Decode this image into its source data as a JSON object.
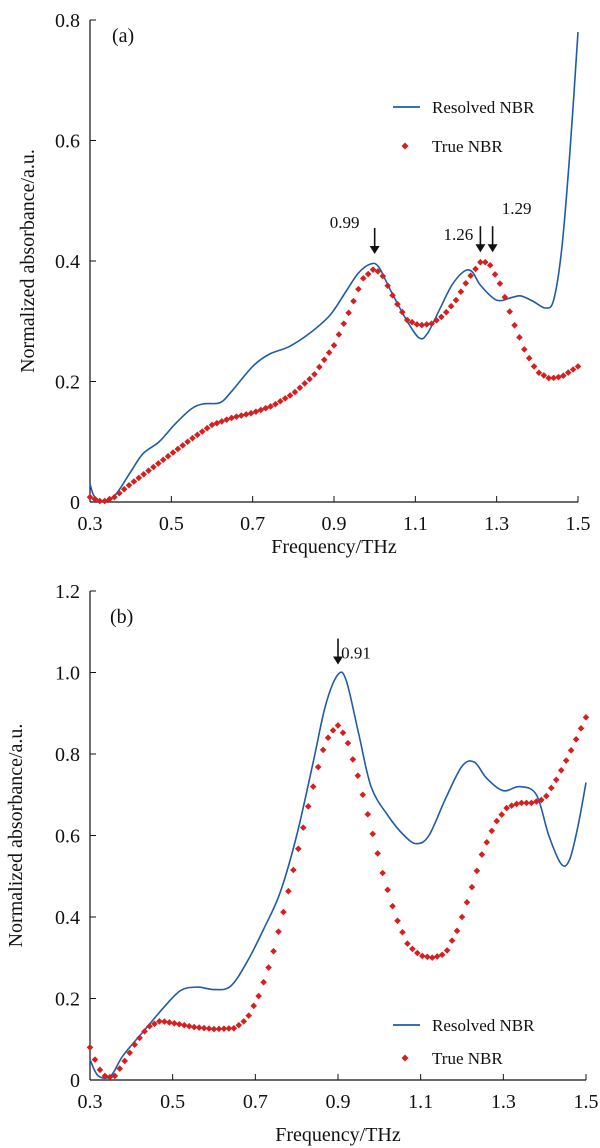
{
  "chart_data": [
    {
      "type": "line",
      "panel_label": "(a)",
      "xlabel": "Frequency/THz",
      "ylabel": "Normalized absorbance/a.u.",
      "xlim": [
        0.3,
        1.5
      ],
      "ylim": [
        0,
        0.8
      ],
      "x_ticks": [
        "0.3",
        "0.5",
        "0.7",
        "0.9",
        "1.1",
        "1.3",
        "1.5"
      ],
      "y_ticks": [
        "0",
        "0.2",
        "0.4",
        "0.6",
        "0.8"
      ],
      "grid": false,
      "legend_position": "upper-right",
      "series": [
        {
          "name": "Resolved NBR",
          "style": "line",
          "color": "#1f5ba8",
          "points": [
            [
              0.3,
              0.03
            ],
            [
              0.31,
              0.01
            ],
            [
              0.33,
              0.002
            ],
            [
              0.36,
              0.01
            ],
            [
              0.4,
              0.05
            ],
            [
              0.43,
              0.08
            ],
            [
              0.47,
              0.1
            ],
            [
              0.51,
              0.13
            ],
            [
              0.55,
              0.155
            ],
            [
              0.58,
              0.163
            ],
            [
              0.62,
              0.165
            ],
            [
              0.65,
              0.185
            ],
            [
              0.7,
              0.225
            ],
            [
              0.74,
              0.245
            ],
            [
              0.79,
              0.258
            ],
            [
              0.84,
              0.28
            ],
            [
              0.89,
              0.31
            ],
            [
              0.93,
              0.35
            ],
            [
              0.96,
              0.38
            ],
            [
              0.99,
              0.395
            ],
            [
              1.01,
              0.39
            ],
            [
              1.04,
              0.35
            ],
            [
              1.08,
              0.3
            ],
            [
              1.11,
              0.272
            ],
            [
              1.13,
              0.28
            ],
            [
              1.16,
              0.32
            ],
            [
              1.19,
              0.36
            ],
            [
              1.22,
              0.383
            ],
            [
              1.24,
              0.382
            ],
            [
              1.26,
              0.36
            ],
            [
              1.3,
              0.335
            ],
            [
              1.34,
              0.34
            ],
            [
              1.36,
              0.342
            ],
            [
              1.39,
              0.333
            ],
            [
              1.42,
              0.322
            ],
            [
              1.44,
              0.335
            ],
            [
              1.46,
              0.42
            ],
            [
              1.48,
              0.58
            ],
            [
              1.5,
              0.78
            ]
          ]
        },
        {
          "name": "True NBR",
          "style": "markers",
          "color": "#d42020",
          "points": [
            [
              0.3,
              0.008
            ],
            [
              0.33,
              0.0
            ],
            [
              0.36,
              0.008
            ],
            [
              0.4,
              0.03
            ],
            [
              0.45,
              0.055
            ],
            [
              0.5,
              0.08
            ],
            [
              0.55,
              0.105
            ],
            [
              0.6,
              0.128
            ],
            [
              0.65,
              0.14
            ],
            [
              0.7,
              0.148
            ],
            [
              0.75,
              0.16
            ],
            [
              0.8,
              0.18
            ],
            [
              0.85,
              0.21
            ],
            [
              0.9,
              0.26
            ],
            [
              0.94,
              0.32
            ],
            [
              0.97,
              0.37
            ],
            [
              1.0,
              0.388
            ],
            [
              1.02,
              0.375
            ],
            [
              1.05,
              0.335
            ],
            [
              1.08,
              0.302
            ],
            [
              1.11,
              0.293
            ],
            [
              1.14,
              0.296
            ],
            [
              1.17,
              0.31
            ],
            [
              1.2,
              0.335
            ],
            [
              1.23,
              0.37
            ],
            [
              1.26,
              0.398
            ],
            [
              1.28,
              0.398
            ],
            [
              1.31,
              0.36
            ],
            [
              1.34,
              0.3
            ],
            [
              1.37,
              0.25
            ],
            [
              1.4,
              0.216
            ],
            [
              1.43,
              0.205
            ],
            [
              1.46,
              0.208
            ],
            [
              1.5,
              0.225
            ]
          ]
        }
      ],
      "annotations": [
        {
          "text": "0.99",
          "x": 1.0
        },
        {
          "text": "1.26",
          "x": 1.26
        },
        {
          "text": "1.29",
          "x": 1.29
        }
      ]
    },
    {
      "type": "line",
      "panel_label": "(b)",
      "xlabel": "Frequency/THz",
      "ylabel": "Normalized absorbance/a.u.",
      "xlim": [
        0.3,
        1.5
      ],
      "ylim": [
        0,
        1.2
      ],
      "x_ticks": [
        "0.3",
        "0.5",
        "0.7",
        "0.9",
        "1.1",
        "1.3",
        "1.5"
      ],
      "y_ticks": [
        "0",
        "0.2",
        "0.4",
        "0.6",
        "0.8",
        "1.0",
        "1.2"
      ],
      "grid": false,
      "legend_position": "lower-right",
      "series": [
        {
          "name": "Resolved NBR",
          "style": "line",
          "color": "#1f5ba8",
          "points": [
            [
              0.3,
              0.05
            ],
            [
              0.32,
              0.01
            ],
            [
              0.35,
              0.01
            ],
            [
              0.38,
              0.06
            ],
            [
              0.43,
              0.12
            ],
            [
              0.48,
              0.18
            ],
            [
              0.52,
              0.22
            ],
            [
              0.56,
              0.228
            ],
            [
              0.6,
              0.222
            ],
            [
              0.64,
              0.23
            ],
            [
              0.68,
              0.29
            ],
            [
              0.72,
              0.37
            ],
            [
              0.76,
              0.46
            ],
            [
              0.8,
              0.6
            ],
            [
              0.84,
              0.78
            ],
            [
              0.87,
              0.92
            ],
            [
              0.9,
              0.995
            ],
            [
              0.92,
              0.98
            ],
            [
              0.95,
              0.85
            ],
            [
              0.98,
              0.72
            ],
            [
              1.02,
              0.65
            ],
            [
              1.06,
              0.6
            ],
            [
              1.09,
              0.58
            ],
            [
              1.12,
              0.6
            ],
            [
              1.16,
              0.69
            ],
            [
              1.2,
              0.77
            ],
            [
              1.23,
              0.78
            ],
            [
              1.26,
              0.74
            ],
            [
              1.3,
              0.71
            ],
            [
              1.34,
              0.72
            ],
            [
              1.38,
              0.7
            ],
            [
              1.41,
              0.6
            ],
            [
              1.44,
              0.53
            ],
            [
              1.46,
              0.54
            ],
            [
              1.48,
              0.62
            ],
            [
              1.5,
              0.73
            ]
          ]
        },
        {
          "name": "True NBR",
          "style": "markers",
          "color": "#d42020",
          "points": [
            [
              0.3,
              0.08
            ],
            [
              0.32,
              0.03
            ],
            [
              0.34,
              0.005
            ],
            [
              0.36,
              0.01
            ],
            [
              0.38,
              0.04
            ],
            [
              0.41,
              0.09
            ],
            [
              0.44,
              0.13
            ],
            [
              0.47,
              0.145
            ],
            [
              0.5,
              0.14
            ],
            [
              0.55,
              0.13
            ],
            [
              0.6,
              0.125
            ],
            [
              0.65,
              0.127
            ],
            [
              0.68,
              0.15
            ],
            [
              0.71,
              0.21
            ],
            [
              0.74,
              0.3
            ],
            [
              0.77,
              0.42
            ],
            [
              0.8,
              0.55
            ],
            [
              0.83,
              0.68
            ],
            [
              0.86,
              0.8
            ],
            [
              0.88,
              0.85
            ],
            [
              0.9,
              0.87
            ],
            [
              0.92,
              0.84
            ],
            [
              0.95,
              0.74
            ],
            [
              0.98,
              0.62
            ],
            [
              1.01,
              0.5
            ],
            [
              1.04,
              0.4
            ],
            [
              1.07,
              0.33
            ],
            [
              1.1,
              0.305
            ],
            [
              1.13,
              0.3
            ],
            [
              1.16,
              0.31
            ],
            [
              1.19,
              0.37
            ],
            [
              1.22,
              0.46
            ],
            [
              1.25,
              0.56
            ],
            [
              1.28,
              0.63
            ],
            [
              1.31,
              0.67
            ],
            [
              1.34,
              0.68
            ],
            [
              1.37,
              0.68
            ],
            [
              1.4,
              0.69
            ],
            [
              1.43,
              0.74
            ],
            [
              1.46,
              0.8
            ],
            [
              1.5,
              0.89
            ]
          ]
        }
      ],
      "annotations": [
        {
          "text": "0.91",
          "x": 0.9
        }
      ]
    }
  ]
}
